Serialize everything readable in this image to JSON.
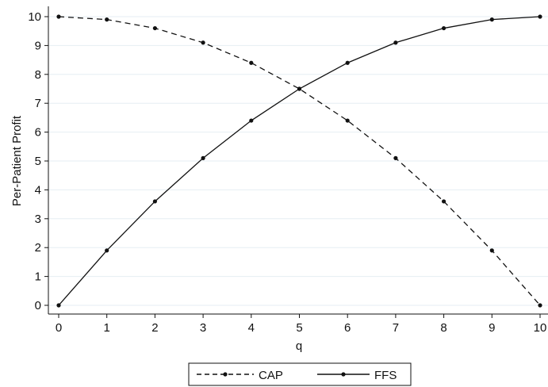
{
  "chart_data": {
    "type": "line",
    "title": "",
    "xlabel": "q",
    "ylabel": "Per-Patient Profit",
    "xlim": [
      0,
      10
    ],
    "ylim": [
      0,
      10
    ],
    "xticks": [
      "0",
      "1",
      "2",
      "3",
      "4",
      "5",
      "6",
      "7",
      "8",
      "9",
      "10"
    ],
    "yticks": [
      "0",
      "1",
      "2",
      "3",
      "4",
      "5",
      "6",
      "7",
      "8",
      "9",
      "10"
    ],
    "grid": true,
    "legend_position": "bottom",
    "series": [
      {
        "name": "CAP",
        "style": "dashed",
        "color": "#111111",
        "x": [
          0,
          1,
          2,
          3,
          4,
          5,
          6,
          7,
          8,
          9,
          10
        ],
        "y": [
          10,
          9.9,
          9.6,
          9.1,
          8.4,
          7.5,
          6.4,
          5.1,
          3.6,
          1.9,
          0
        ]
      },
      {
        "name": "FFS",
        "style": "solid",
        "color": "#111111",
        "x": [
          0,
          1,
          2,
          3,
          4,
          5,
          6,
          7,
          8,
          9,
          10
        ],
        "y": [
          0,
          1.9,
          3.6,
          5.1,
          6.4,
          7.5,
          8.4,
          9.1,
          9.6,
          9.9,
          10
        ]
      }
    ]
  }
}
